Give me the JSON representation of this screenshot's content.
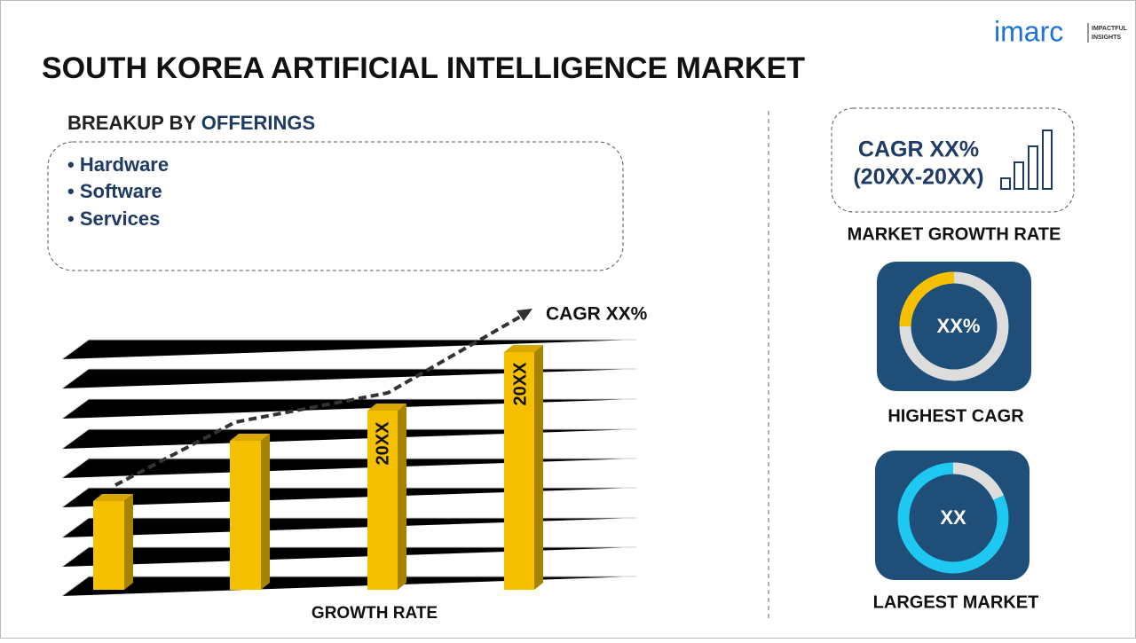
{
  "logo": {
    "brand": "imarc",
    "tagline_1": "IMPACTFUL",
    "tagline_2": "INSIGHTS"
  },
  "header": {
    "title": "SOUTH KOREA ARTIFICIAL INTELLIGENCE MARKET"
  },
  "breakup": {
    "label": "BREAKUP BY",
    "highlight": "OFFERINGS",
    "items": [
      "Hardware",
      "Software",
      "Services"
    ]
  },
  "growth_chart": {
    "arrow_label": "CAGR XX%",
    "bar_labels": [
      "20XX",
      "20XX"
    ],
    "caption": "GROWTH RATE"
  },
  "market_growth": {
    "line_1": "CAGR XX%",
    "line_2": "(20XX-20XX)",
    "caption": "MARKET GROWTH RATE"
  },
  "highest_cagr": {
    "value": "XX%",
    "caption": "HIGHEST CAGR"
  },
  "largest_market": {
    "value": "XX",
    "caption": "LARGEST MARKET"
  }
}
